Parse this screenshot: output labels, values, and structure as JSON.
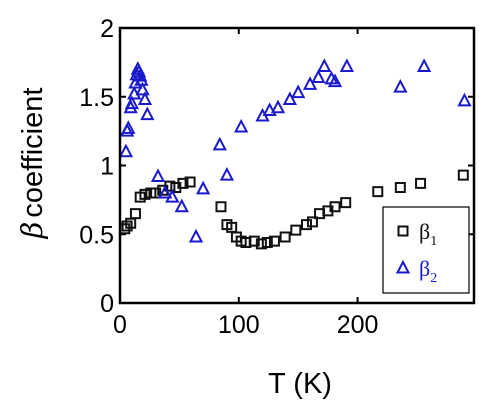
{
  "chart_data": {
    "type": "scatter",
    "xlabel": "T (K)",
    "ylabel_symbol": "β",
    "ylabel_text": "coefficient",
    "xlim": [
      0,
      298
    ],
    "ylim": [
      0,
      2
    ],
    "xticks": [
      0,
      100,
      200
    ],
    "xtick_labels": [
      "0",
      "100",
      "200"
    ],
    "yticks": [
      0,
      0.5,
      1,
      1.5,
      2
    ],
    "ytick_labels": [
      "0",
      "0.5",
      "1",
      "1.5",
      "2"
    ],
    "grid": false,
    "legend_position": "bottom-right",
    "series": [
      {
        "symbol": "β",
        "subscript": "1",
        "marker": "square",
        "color": "#111111",
        "points": [
          {
            "x": 4,
            "y": 0.54
          },
          {
            "x": 6,
            "y": 0.56
          },
          {
            "x": 9,
            "y": 0.58
          },
          {
            "x": 13,
            "y": 0.65
          },
          {
            "x": 17,
            "y": 0.77
          },
          {
            "x": 21,
            "y": 0.79
          },
          {
            "x": 26,
            "y": 0.8
          },
          {
            "x": 30,
            "y": 0.8
          },
          {
            "x": 36,
            "y": 0.82
          },
          {
            "x": 42,
            "y": 0.85
          },
          {
            "x": 47,
            "y": 0.84
          },
          {
            "x": 53,
            "y": 0.87
          },
          {
            "x": 59,
            "y": 0.88
          },
          {
            "x": 85,
            "y": 0.7
          },
          {
            "x": 90,
            "y": 0.57
          },
          {
            "x": 94,
            "y": 0.55
          },
          {
            "x": 98,
            "y": 0.48
          },
          {
            "x": 102,
            "y": 0.45
          },
          {
            "x": 106,
            "y": 0.44
          },
          {
            "x": 113,
            "y": 0.45
          },
          {
            "x": 119,
            "y": 0.43
          },
          {
            "x": 124,
            "y": 0.44
          },
          {
            "x": 130,
            "y": 0.45
          },
          {
            "x": 139,
            "y": 0.48
          },
          {
            "x": 148,
            "y": 0.53
          },
          {
            "x": 157,
            "y": 0.57
          },
          {
            "x": 162,
            "y": 0.59
          },
          {
            "x": 168,
            "y": 0.65
          },
          {
            "x": 175,
            "y": 0.67
          },
          {
            "x": 181,
            "y": 0.7
          },
          {
            "x": 190,
            "y": 0.73
          },
          {
            "x": 217,
            "y": 0.81
          },
          {
            "x": 236,
            "y": 0.84
          },
          {
            "x": 253,
            "y": 0.87
          },
          {
            "x": 289,
            "y": 0.93
          }
        ]
      },
      {
        "symbol": "β",
        "subscript": "2",
        "marker": "triangle",
        "color": "#1a1acc",
        "points": [
          {
            "x": 5,
            "y": 1.1
          },
          {
            "x": 6,
            "y": 1.25
          },
          {
            "x": 7,
            "y": 1.27
          },
          {
            "x": 9,
            "y": 1.42
          },
          {
            "x": 10,
            "y": 1.45
          },
          {
            "x": 12,
            "y": 1.52
          },
          {
            "x": 13,
            "y": 1.6
          },
          {
            "x": 14,
            "y": 1.66
          },
          {
            "x": 15,
            "y": 1.7
          },
          {
            "x": 16,
            "y": 1.68
          },
          {
            "x": 17,
            "y": 1.65
          },
          {
            "x": 18,
            "y": 1.62
          },
          {
            "x": 19,
            "y": 1.55
          },
          {
            "x": 21,
            "y": 1.48
          },
          {
            "x": 23,
            "y": 1.37
          },
          {
            "x": 32,
            "y": 0.92
          },
          {
            "x": 38,
            "y": 0.8
          },
          {
            "x": 44,
            "y": 0.77
          },
          {
            "x": 52,
            "y": 0.7
          },
          {
            "x": 64,
            "y": 0.48
          },
          {
            "x": 70,
            "y": 0.83
          },
          {
            "x": 84,
            "y": 1.15
          },
          {
            "x": 90,
            "y": 0.93
          },
          {
            "x": 102,
            "y": 1.28
          },
          {
            "x": 120,
            "y": 1.36
          },
          {
            "x": 126,
            "y": 1.4
          },
          {
            "x": 133,
            "y": 1.42
          },
          {
            "x": 143,
            "y": 1.48
          },
          {
            "x": 150,
            "y": 1.53
          },
          {
            "x": 160,
            "y": 1.59
          },
          {
            "x": 167,
            "y": 1.64
          },
          {
            "x": 172,
            "y": 1.72
          },
          {
            "x": 178,
            "y": 1.63
          },
          {
            "x": 181,
            "y": 1.61
          },
          {
            "x": 191,
            "y": 1.72
          },
          {
            "x": 236,
            "y": 1.57
          },
          {
            "x": 256,
            "y": 1.72
          },
          {
            "x": 290,
            "y": 1.47
          }
        ]
      }
    ]
  }
}
